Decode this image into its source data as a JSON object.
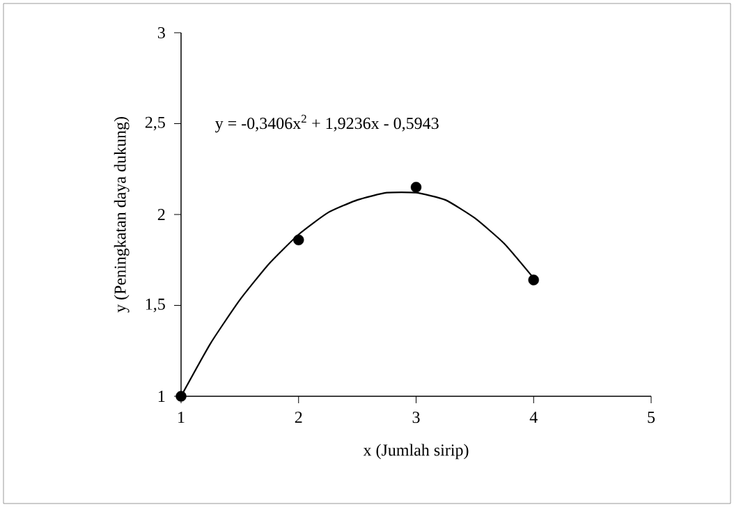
{
  "chart_data": {
    "type": "scatter",
    "xlabel": "x (Jumlah sirip)",
    "ylabel": "y (Peningkatan daya dukung)",
    "annotations": [
      "y = -0,3406x$^{2}$ + 1,9236x - 0,5943"
    ],
    "xlim": [
      1,
      5
    ],
    "ylim": [
      1,
      3
    ],
    "xticks": [
      1,
      2,
      3,
      4,
      5
    ],
    "yticks": [
      1,
      {
        "value": 1.5,
        "label": "1,5"
      },
      2,
      {
        "value": 2.5,
        "label": "2,5"
      },
      3
    ],
    "grid": false,
    "series": [
      {
        "marker": "circle",
        "color": "#000000",
        "x": [
          1,
          2,
          3,
          4
        ],
        "values": [
          1.0,
          1.86,
          2.15,
          1.64
        ]
      },
      {
        "type": "line",
        "marker": "none",
        "color": "#000000",
        "x": [
          1,
          1.25,
          1.5,
          1.75,
          2,
          2.25,
          2.5,
          2.75,
          3,
          3.25,
          3.5,
          3.75,
          4
        ],
        "values": [
          1.0,
          1.29,
          1.53,
          1.73,
          1.89,
          2.01,
          2.08,
          2.12,
          2.12,
          2.08,
          1.98,
          1.84,
          1.65
        ]
      }
    ]
  }
}
